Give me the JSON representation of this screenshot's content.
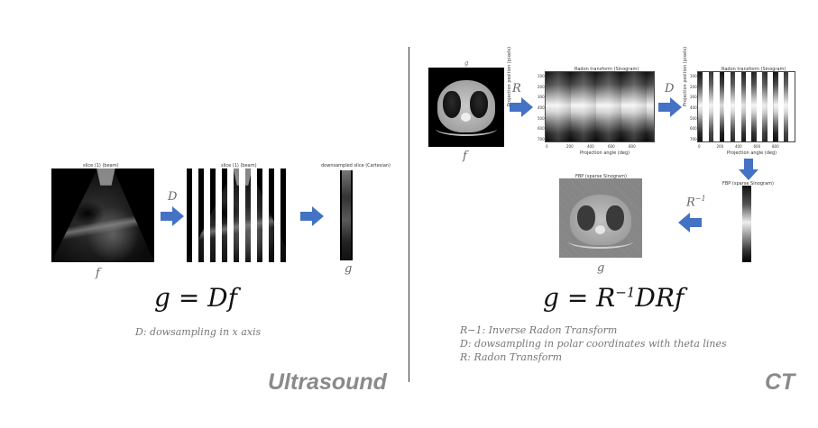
{
  "colors": {
    "arrow": "#4472c4",
    "title": "#8a8a8a",
    "divider": "#333333"
  },
  "ultrasound": {
    "section_title": "Ultrasound",
    "img1_caption": "slice (1) (beam)",
    "img2_caption": "slice (1) (beam)",
    "img3_caption": "downsampled slice (Cartesian)",
    "op_label": "D",
    "var_f": "f",
    "var_g": "g",
    "equation": "g = Df",
    "note": "D: dowsampling in x axis",
    "stripe_count": 9
  },
  "ct": {
    "section_title": "CT",
    "var_g_top": "g",
    "var_f": "f",
    "var_g_bottom": "g",
    "op_R": "R",
    "op_D": "D",
    "op_Rinv_base": "R",
    "op_Rinv_exp": "−1",
    "sino1_title": "Radon transform (Sinogram)",
    "sino2_title": "Radon transform (Sinogram)",
    "sparse_title": "FBP (sparse Sinogram)",
    "fbp_title": "FBP (sparse Sinogram)",
    "xlabel": "Projection angle (deg)",
    "ylabel": "Projection position (pixels)",
    "xticks": [
      "0",
      "200",
      "400",
      "600",
      "800"
    ],
    "yticks": [
      "100",
      "200",
      "300",
      "400",
      "500",
      "600",
      "700"
    ],
    "equation_lhs": "g = R",
    "equation_exp": "−1",
    "equation_rhs": "DRf",
    "notes": [
      "R−1: Inverse Radon Transform",
      "D: dowsampling in polar coordinates with theta lines",
      "R: Radon Transform"
    ],
    "stripe_count": 9
  }
}
